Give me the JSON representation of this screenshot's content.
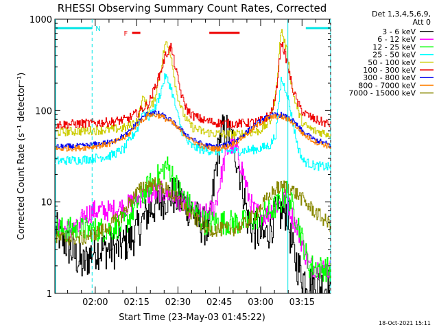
{
  "chart_data": {
    "type": "line",
    "title": "RHESSI Observing Summary Count Rates, Corrected",
    "xlabel": "Start Time (23-May-03 01:45:22)",
    "ylabel": "Corrected Count Rate (s⁻¹ detector⁻¹)",
    "yscale": "log",
    "ylim": [
      1,
      1000
    ],
    "xlim_minutes": [
      0,
      100
    ],
    "x_tick_labels": [
      "02:00",
      "02:15",
      "02:30",
      "02:45",
      "03:00",
      "03:15"
    ],
    "x_tick_minutes": [
      14.63,
      29.63,
      44.63,
      59.63,
      74.63,
      89.63
    ],
    "y_tick_labels": [
      "1",
      "10",
      "100",
      "1000"
    ],
    "y_tick_values": [
      1,
      10,
      100,
      1000
    ],
    "legend_header": [
      "Det 1,3,4,5,6,9,",
      "Att 0"
    ],
    "series": [
      {
        "name": "3 - 6 keV",
        "color": "#000000",
        "x": [
          0,
          10,
          14,
          22,
          28,
          34,
          38,
          42,
          46,
          50,
          52,
          56,
          58,
          60,
          62,
          64,
          66,
          68,
          70,
          72,
          76,
          80,
          84,
          86,
          88,
          90,
          94,
          100
        ],
        "values": [
          5,
          2,
          3,
          3,
          4,
          8,
          10,
          12,
          10,
          8,
          6,
          5,
          20,
          55,
          60,
          50,
          30,
          15,
          6,
          5,
          4,
          7,
          8,
          3,
          2,
          1.5,
          1.2,
          1.2
        ]
      },
      {
        "name": "6 - 12 keV",
        "color": "#ff00ff",
        "x": [
          0,
          9,
          10,
          14,
          20,
          26,
          30,
          34,
          38,
          42,
          46,
          50,
          54,
          58,
          62,
          64,
          66,
          68,
          70,
          72,
          76,
          80,
          84,
          86,
          88,
          92,
          100
        ],
        "values": [
          5,
          5,
          7,
          8,
          8,
          9,
          11,
          12,
          13,
          12,
          10,
          8,
          7,
          9,
          35,
          42,
          35,
          22,
          12,
          8,
          7,
          9,
          11,
          7,
          5,
          2,
          1.8
        ]
      },
      {
        "name": "12 - 25 keV",
        "color": "#00ff00",
        "x": [
          0,
          10,
          14,
          20,
          26,
          30,
          34,
          38,
          40,
          42,
          44,
          46,
          50,
          54,
          58,
          62,
          66,
          70,
          74,
          78,
          82,
          84,
          86,
          88,
          92,
          100
        ],
        "values": [
          5,
          5,
          5,
          5,
          6,
          10,
          15,
          20,
          25,
          22,
          15,
          12,
          8,
          6,
          6,
          6,
          6,
          6,
          7,
          8,
          10,
          13,
          9,
          6,
          2,
          1.8
        ]
      },
      {
        "name": "25 - 50 keV",
        "color": "#00ffff",
        "x": [
          0,
          10,
          20,
          25,
          30,
          32,
          34,
          36,
          38,
          40,
          42,
          44,
          46,
          48,
          50,
          54,
          58,
          62,
          66,
          70,
          74,
          78,
          80,
          82,
          84,
          86,
          88,
          90,
          94,
          100
        ],
        "values": [
          28,
          29,
          32,
          38,
          65,
          100,
          85,
          100,
          150,
          240,
          180,
          100,
          60,
          45,
          40,
          37,
          36,
          36,
          36,
          37,
          38,
          42,
          55,
          220,
          160,
          80,
          40,
          28,
          25,
          24
        ]
      },
      {
        "name": "50 - 100 keV",
        "color": "#cccc00",
        "x": [
          0,
          10,
          20,
          26,
          30,
          32,
          34,
          36,
          38,
          40,
          42,
          44,
          46,
          48,
          50,
          54,
          58,
          62,
          66,
          70,
          74,
          78,
          80,
          82,
          84,
          86,
          88,
          90,
          94,
          100
        ],
        "values": [
          58,
          60,
          62,
          65,
          80,
          140,
          100,
          130,
          250,
          560,
          420,
          160,
          100,
          75,
          65,
          58,
          56,
          55,
          55,
          57,
          60,
          75,
          150,
          780,
          450,
          170,
          100,
          70,
          60,
          55
        ]
      },
      {
        "name": "100 - 300 keV",
        "color": "#ee0000",
        "x": [
          0,
          10,
          20,
          26,
          30,
          34,
          38,
          40,
          42,
          44,
          46,
          48,
          50,
          54,
          58,
          62,
          66,
          70,
          74,
          78,
          80,
          82,
          84,
          86,
          88,
          90,
          94,
          100
        ],
        "values": [
          70,
          72,
          75,
          80,
          95,
          120,
          250,
          400,
          500,
          260,
          140,
          100,
          88,
          78,
          74,
          72,
          72,
          73,
          76,
          90,
          140,
          580,
          350,
          180,
          120,
          95,
          80,
          70
        ]
      },
      {
        "name": "300 - 800 keV",
        "color": "#0000ee",
        "x": [
          0,
          10,
          20,
          26,
          30,
          34,
          38,
          42,
          46,
          50,
          54,
          58,
          62,
          66,
          70,
          74,
          78,
          82,
          86,
          90,
          94,
          100
        ],
        "values": [
          40,
          41,
          45,
          55,
          75,
          95,
          92,
          78,
          60,
          48,
          42,
          40,
          42,
          48,
          60,
          75,
          88,
          90,
          78,
          58,
          48,
          42
        ]
      },
      {
        "name": "800 - 7000 keV",
        "color": "#ff8000",
        "x": [
          0,
          10,
          20,
          26,
          30,
          34,
          38,
          42,
          46,
          50,
          54,
          58,
          62,
          66,
          70,
          74,
          78,
          82,
          86,
          90,
          94,
          100
        ],
        "values": [
          38,
          39,
          43,
          52,
          72,
          90,
          88,
          75,
          58,
          46,
          40,
          38,
          40,
          46,
          57,
          72,
          85,
          86,
          75,
          55,
          46,
          40
        ]
      },
      {
        "name": "7000 - 15000 keV",
        "color": "#888800",
        "x": [
          0,
          10,
          18,
          24,
          28,
          32,
          36,
          40,
          44,
          48,
          52,
          56,
          60,
          64,
          68,
          72,
          76,
          80,
          84,
          88,
          92,
          96,
          100
        ],
        "values": [
          4,
          4,
          5,
          7,
          11,
          15,
          16,
          14,
          11,
          8,
          6,
          5,
          5,
          5,
          5.5,
          7,
          10,
          14,
          15,
          12,
          9,
          7,
          5.5
        ]
      }
    ],
    "annotations": [
      {
        "label": "N",
        "color": "#00e5e5",
        "kind": "night",
        "x_from": 0,
        "x_to": 13.5
      },
      {
        "label": "",
        "color": "#00e5e5",
        "kind": "night",
        "x_from": 91,
        "x_to": 100
      },
      {
        "label": "F",
        "color": "#ee0000",
        "kind": "flare",
        "x_from": 28,
        "x_to": 31
      },
      {
        "label": "",
        "color": "#ee0000",
        "kind": "flare",
        "x_from": 56,
        "x_to": 67
      }
    ],
    "vlines_dashed_minutes": [
      13.5,
      100
    ],
    "vlines_solid_minutes": [
      0,
      84.5
    ],
    "footer": "18-Oct-2021 15:11"
  }
}
